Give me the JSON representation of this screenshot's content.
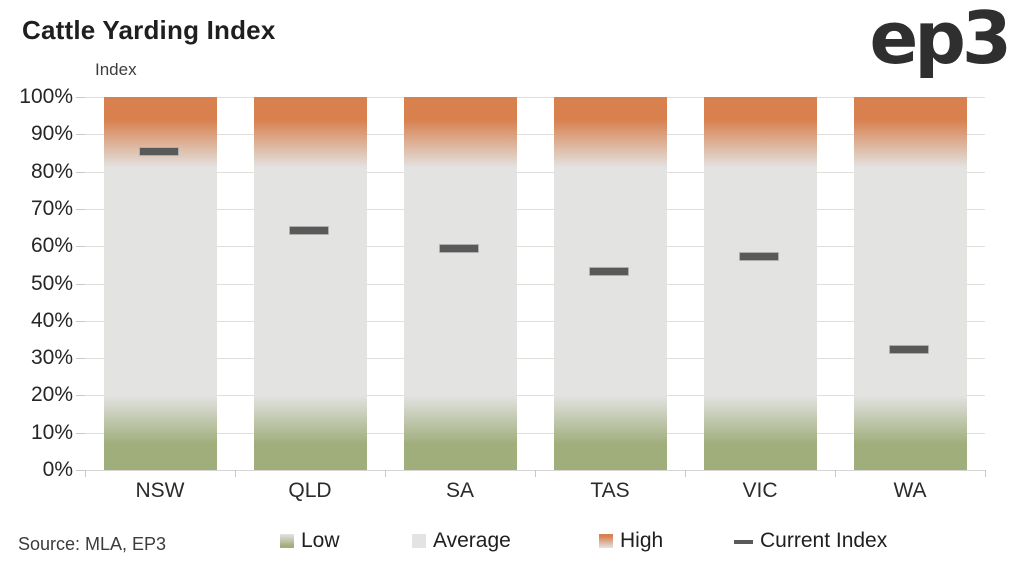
{
  "header": {
    "title": "Cattle Yarding Index",
    "logo_text": "ep3"
  },
  "footer": {
    "source": "Source: MLA, EP3"
  },
  "chart_data": {
    "type": "bar",
    "title": "Cattle Yarding Index",
    "axis_title": "Index",
    "categories": [
      "NSW",
      "QLD",
      "SA",
      "TAS",
      "VIC",
      "WA"
    ],
    "series": [
      {
        "name": "Current Index",
        "values": [
          85,
          64,
          59,
          53,
          57,
          32
        ]
      }
    ],
    "bands": [
      {
        "name": "Low",
        "from": 0,
        "to": 20,
        "color": "#a0ae7c"
      },
      {
        "name": "Average",
        "from": 20,
        "to": 82,
        "color": "#e3e3e2"
      },
      {
        "name": "High",
        "from": 82,
        "to": 100,
        "color": "#d8804e"
      }
    ],
    "ylim": [
      0,
      100
    ],
    "y_tick_step": 10,
    "y_tick_suffix": "%",
    "grid": true,
    "legend_position": "bottom",
    "marker_color": "#595959",
    "legend": [
      {
        "label": "Low",
        "swatch": "low-gradient"
      },
      {
        "label": "Average",
        "swatch": "average-flat"
      },
      {
        "label": "High",
        "swatch": "high-gradient"
      },
      {
        "label": "Current Index",
        "swatch": "dash"
      }
    ]
  }
}
